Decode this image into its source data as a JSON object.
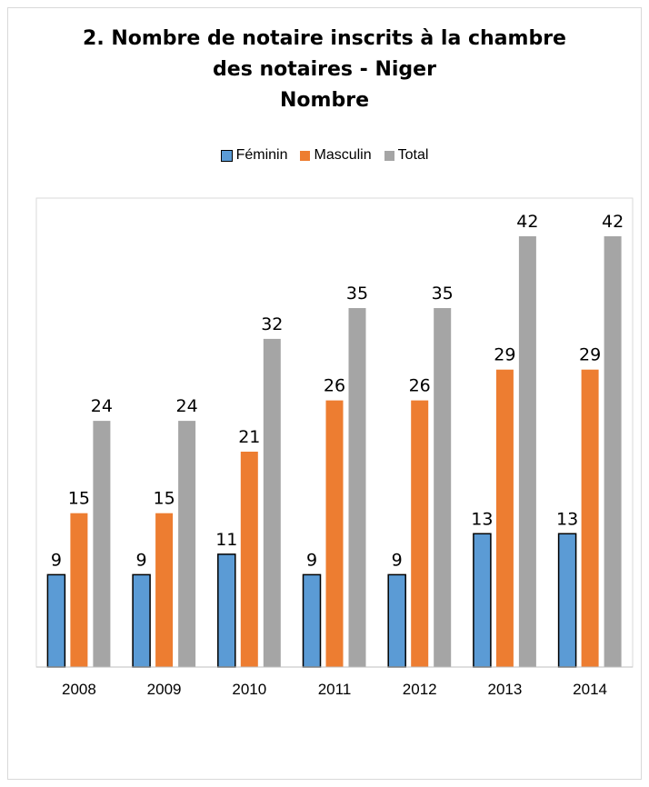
{
  "chart_data": {
    "type": "bar",
    "title_lines": [
      "2. Nombre de notaire inscrits à la chambre",
      "des notaires - Niger",
      "Nombre"
    ],
    "categories": [
      "2008",
      "2009",
      "2010",
      "2011",
      "2012",
      "2013",
      "2014"
    ],
    "series": [
      {
        "name": "Féminin",
        "color": "#5b9bd5",
        "values": [
          9,
          9,
          11,
          9,
          9,
          13,
          13
        ]
      },
      {
        "name": "Masculin",
        "color": "#ed7d31",
        "values": [
          15,
          15,
          21,
          26,
          26,
          29,
          29
        ]
      },
      {
        "name": "Total",
        "color": "#a5a5a5",
        "values": [
          24,
          24,
          32,
          35,
          35,
          42,
          42
        ]
      }
    ],
    "ylim": [
      0,
      45
    ],
    "legend_position": "top",
    "grid": false,
    "data_labels": true
  }
}
